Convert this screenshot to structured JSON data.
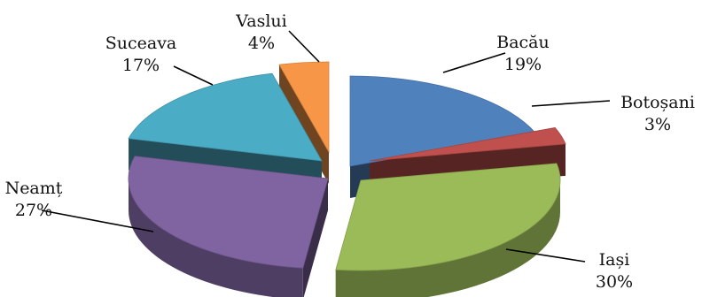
{
  "chart_data": {
    "type": "pie",
    "variant": "3d-exploded",
    "legend": "none",
    "slices": [
      {
        "category": "Bacău",
        "value": 19,
        "label": "19%",
        "color": "#4f81bd"
      },
      {
        "category": "Botoșani",
        "value": 3,
        "label": "3%",
        "color": "#c0504d"
      },
      {
        "category": "Iași",
        "value": 30,
        "label": "30%",
        "color": "#9bbb59"
      },
      {
        "category": "Neamț",
        "value": 27,
        "label": "27%",
        "color": "#8064a2"
      },
      {
        "category": "Suceava",
        "value": 17,
        "label": "17%",
        "color": "#4bacc6"
      },
      {
        "category": "Vaslui",
        "value": 4,
        "label": "4%",
        "color": "#f79646"
      }
    ]
  }
}
